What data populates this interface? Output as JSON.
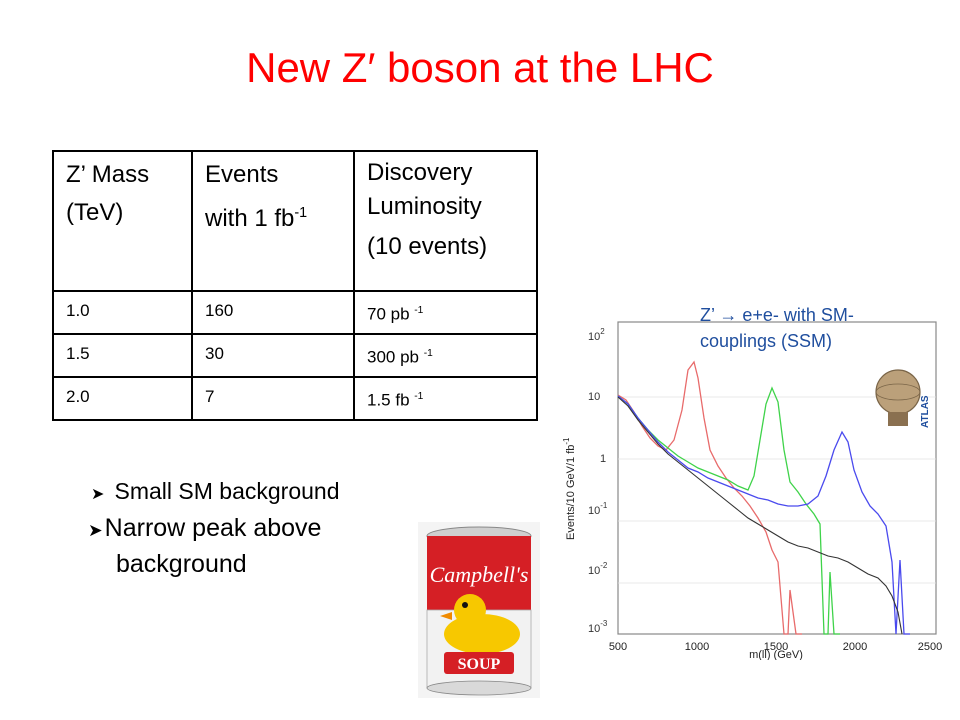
{
  "title": "New Z′ boson at the LHC",
  "table": {
    "headers": [
      {
        "line1": "Z’ Mass",
        "line2": "(TeV)",
        "line3": ""
      },
      {
        "line1": "Events",
        "line2": "with 1 fb",
        "sup": "-1",
        "line3": ""
      },
      {
        "line1": "Discovery",
        "line2": "Luminosity",
        "line3": "(10 events)"
      }
    ],
    "rows": [
      {
        "mass": "1.0",
        "events": "160",
        "lumi": "70 pb",
        "lumi_sup": "-1"
      },
      {
        "mass": "1.5",
        "events": "30",
        "lumi": "300 pb",
        "lumi_sup": "-1"
      },
      {
        "mass": "2.0",
        "events": "7",
        "lumi": "1.5 fb",
        "lumi_sup": "-1"
      }
    ]
  },
  "bullets": {
    "item1": "Small SM background",
    "item2_line1": "Narrow peak above",
    "item2_line2": "background"
  },
  "plot": {
    "annotation_line1": "Z’ → e+e- with  SM-",
    "annotation_line2": "couplings (SSM)",
    "ylabel": "Events/10 GeV/1 fb",
    "ylabel_sup": "-1",
    "xlabel": "m(ll) (GeV)",
    "xticks": [
      "500",
      "1000",
      "1500",
      "2000",
      "2500"
    ],
    "ytick_labels": [
      {
        "base": "10",
        "exp": "2"
      },
      {
        "base": "10",
        "exp": ""
      },
      {
        "base": "1",
        "exp": ""
      },
      {
        "base": "10",
        "exp": "-1"
      },
      {
        "base": "10",
        "exp": "-2"
      },
      {
        "base": "10",
        "exp": "-3"
      }
    ],
    "logo_text": "ATLAS",
    "colors": {
      "red": "#e86b6b",
      "green": "#3fd34a",
      "blue": "#4a4aee",
      "black": "#333333"
    }
  },
  "soup": {
    "brand": "Campbell's",
    "label": "SOUP"
  }
}
